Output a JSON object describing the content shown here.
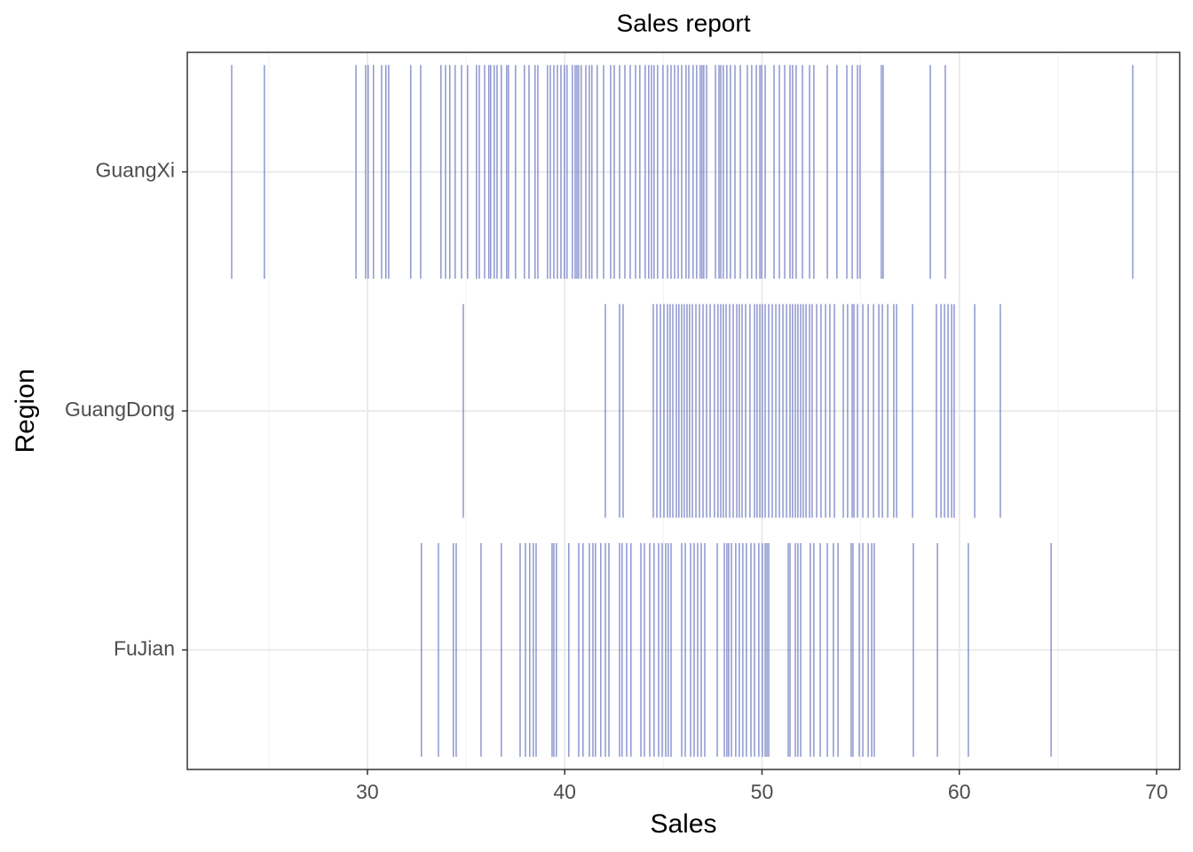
{
  "chart_data": {
    "type": "strip",
    "title": "Sales report",
    "xlabel": "Sales",
    "ylabel": "Region",
    "categories": [
      "FuJian",
      "GuangDong",
      "GuangXi"
    ],
    "color": "#5563b8",
    "xlim": [
      20.87,
      71.17
    ],
    "xticks": [
      30,
      40,
      50,
      60,
      70
    ],
    "xminorticks": [
      25,
      35,
      45,
      55,
      65
    ],
    "grid": true,
    "values": [
      [
        32.74,
        33.6,
        34.36,
        34.5,
        35.76,
        36.79,
        37.74,
        38.01,
        38.23,
        38.41,
        38.55,
        39.36,
        39.45,
        39.58,
        40.21,
        40.71,
        40.93,
        41.25,
        41.43,
        41.56,
        41.83,
        42.06,
        42.24,
        42.78,
        42.91,
        43.14,
        43.36,
        43.86,
        44.04,
        44.31,
        44.53,
        44.76,
        44.94,
        45.12,
        45.25,
        45.39,
        45.93,
        46.11,
        46.38,
        46.56,
        46.74,
        46.92,
        47.1,
        47.73,
        48.09,
        48.22,
        48.31,
        48.45,
        48.67,
        48.85,
        49.03,
        49.21,
        49.44,
        49.62,
        49.84,
        50.02,
        50.16,
        50.25,
        50.34,
        51.33,
        51.42,
        51.69,
        51.82,
        51.96,
        52.45,
        52.63,
        52.95,
        53.31,
        53.62,
        53.85,
        54.52,
        54.61,
        54.93,
        55.11,
        55.38,
        55.56,
        55.69,
        57.67,
        58.89,
        60.46,
        64.65
      ],
      [
        34.86,
        42.06,
        42.78,
        42.96,
        44.49,
        44.67,
        44.85,
        45.03,
        45.21,
        45.34,
        45.48,
        45.66,
        45.79,
        45.93,
        46.06,
        46.2,
        46.33,
        46.47,
        46.65,
        46.83,
        47.01,
        47.19,
        47.37,
        47.59,
        47.77,
        47.91,
        48.04,
        48.18,
        48.36,
        48.54,
        48.72,
        48.85,
        48.99,
        49.17,
        49.39,
        49.62,
        49.75,
        49.89,
        50.02,
        50.16,
        50.34,
        50.52,
        50.7,
        50.88,
        51.06,
        51.24,
        51.42,
        51.55,
        51.69,
        51.82,
        51.96,
        52.09,
        52.23,
        52.41,
        52.54,
        52.77,
        52.99,
        53.22,
        53.44,
        53.67,
        54.12,
        54.34,
        54.57,
        54.66,
        54.84,
        55.11,
        55.38,
        55.65,
        55.92,
        56.1,
        56.37,
        56.68,
        56.82,
        57.63,
        58.84,
        59.07,
        59.25,
        59.43,
        59.61,
        59.74,
        60.78,
        62.08
      ],
      [
        23.12,
        24.78,
        29.42,
        29.91,
        30.04,
        30.31,
        30.72,
        30.94,
        31.08,
        32.2,
        32.7,
        33.73,
        33.96,
        34.18,
        34.45,
        34.77,
        35.08,
        35.53,
        35.67,
        35.94,
        36.16,
        36.25,
        36.43,
        36.57,
        36.79,
        37.06,
        37.15,
        37.51,
        37.96,
        38.19,
        38.5,
        38.64,
        39.13,
        39.27,
        39.45,
        39.63,
        39.81,
        39.99,
        40.12,
        40.39,
        40.53,
        40.62,
        40.71,
        40.84,
        41.07,
        41.25,
        41.38,
        41.65,
        41.97,
        42.33,
        42.51,
        42.78,
        43.05,
        43.32,
        43.59,
        43.81,
        44.08,
        44.26,
        44.4,
        44.53,
        44.71,
        44.98,
        45.21,
        45.39,
        45.57,
        45.75,
        45.93,
        46.15,
        46.29,
        46.51,
        46.69,
        46.87,
        46.96,
        47.05,
        47.19,
        47.64,
        47.82,
        47.91,
        48.04,
        48.22,
        48.4,
        48.63,
        48.9,
        49.26,
        49.48,
        49.71,
        49.89,
        49.98,
        50.16,
        50.61,
        50.88,
        51.15,
        51.42,
        51.55,
        51.73,
        52.05,
        52.41,
        52.63,
        53.31,
        53.8,
        54.3,
        54.57,
        54.84,
        54.97,
        56.05,
        56.14,
        58.53,
        59.29,
        68.79
      ]
    ]
  }
}
